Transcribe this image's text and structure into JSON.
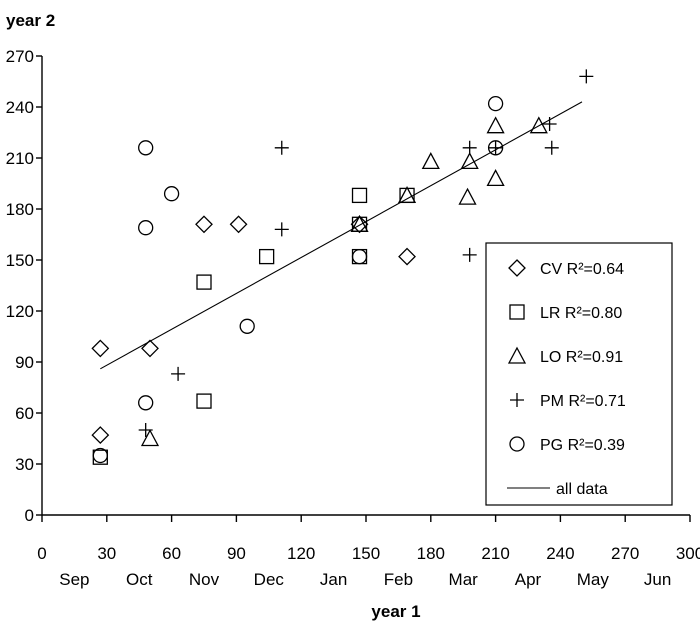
{
  "chart_data": {
    "type": "scatter",
    "xlabel": "year 1",
    "ylabel": "year 2",
    "xlim": [
      0,
      300
    ],
    "ylim": [
      0,
      270
    ],
    "x_ticks": [
      0,
      30,
      60,
      90,
      120,
      150,
      180,
      210,
      240,
      270,
      300
    ],
    "y_ticks": [
      0,
      30,
      60,
      90,
      120,
      150,
      180,
      210,
      240,
      270
    ],
    "month_labels": [
      "Sep",
      "Oct",
      "Nov",
      "Dec",
      "Jan",
      "Feb",
      "Mar",
      "Apr",
      "May",
      "Jun"
    ],
    "grid": false,
    "legend_position": "right",
    "series": [
      {
        "name": "CV R²=0.64",
        "marker": "diamond",
        "points": [
          [
            27,
            98
          ],
          [
            27,
            47
          ],
          [
            50,
            98
          ],
          [
            75,
            171
          ],
          [
            91,
            171
          ],
          [
            147,
            171
          ],
          [
            169,
            152
          ]
        ]
      },
      {
        "name": "LR R²=0.80",
        "marker": "square",
        "points": [
          [
            27,
            34
          ],
          [
            75,
            67
          ],
          [
            75,
            137
          ],
          [
            104,
            152
          ],
          [
            147,
            152
          ],
          [
            147,
            171
          ],
          [
            147,
            188
          ],
          [
            169,
            188
          ]
        ]
      },
      {
        "name": "LO R²=0.91",
        "marker": "triangle",
        "points": [
          [
            50,
            45
          ],
          [
            147,
            171
          ],
          [
            169,
            188
          ],
          [
            180,
            208
          ],
          [
            197,
            187
          ],
          [
            198,
            208
          ],
          [
            210,
            198
          ],
          [
            210,
            229
          ],
          [
            230,
            229
          ]
        ]
      },
      {
        "name": "PM R²=0.71",
        "marker": "plus",
        "points": [
          [
            48,
            50
          ],
          [
            63,
            83
          ],
          [
            111,
            216
          ],
          [
            111,
            168
          ],
          [
            198,
            153
          ],
          [
            198,
            216
          ],
          [
            210,
            216
          ],
          [
            235,
            230
          ],
          [
            236,
            216
          ],
          [
            252,
            258
          ]
        ]
      },
      {
        "name": "PG R²=0.39",
        "marker": "circle",
        "points": [
          [
            27,
            35
          ],
          [
            48,
            66
          ],
          [
            48,
            169
          ],
          [
            48,
            216
          ],
          [
            60,
            189
          ],
          [
            95,
            111
          ],
          [
            147,
            152
          ],
          [
            210,
            216
          ],
          [
            210,
            242
          ]
        ]
      },
      {
        "name": "all data",
        "type": "line",
        "points": [
          [
            27,
            86
          ],
          [
            250,
            243
          ]
        ]
      }
    ]
  }
}
